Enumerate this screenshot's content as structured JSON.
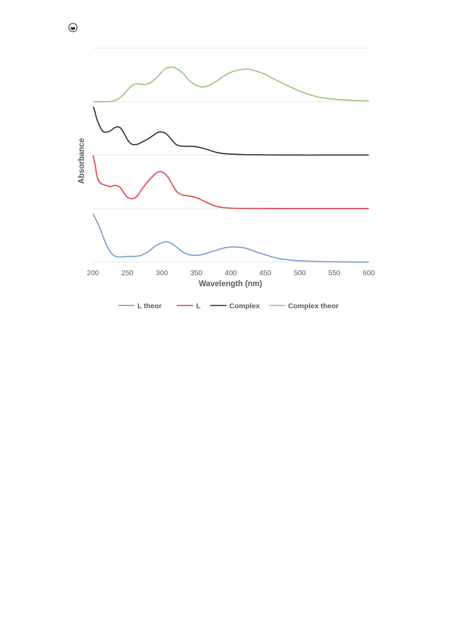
{
  "header": {
    "icon": "circled-half-icon"
  },
  "chart_data": {
    "type": "line",
    "title": "",
    "xlabel": "Wavelength (nm)",
    "ylabel": "Absorbance",
    "xlim": [
      200,
      600
    ],
    "xticks": [
      "200",
      "250",
      "300",
      "350",
      "400",
      "450",
      "500",
      "550",
      "600"
    ],
    "y_tick_labels_shown": false,
    "horizontal_gridlines": true,
    "band_count": 4,
    "legend": {
      "placement": "bottom",
      "entries": [
        "L theor",
        "L",
        "Complex",
        "Complex theor"
      ]
    },
    "series": [
      {
        "name": "L theor",
        "color": "#7395d1",
        "band": 0,
        "x": [
          200,
          205,
          210,
          215,
          220,
          225,
          230,
          235,
          240,
          245,
          250,
          260,
          270,
          280,
          290,
          300,
          305,
          310,
          315,
          320,
          330,
          340,
          350,
          360,
          370,
          380,
          390,
          400,
          405,
          410,
          420,
          430,
          440,
          450,
          460,
          470,
          480,
          490,
          500,
          520,
          540,
          560,
          580,
          600
        ],
        "y": [
          0.92,
          0.8,
          0.65,
          0.48,
          0.32,
          0.2,
          0.13,
          0.1,
          0.1,
          0.1,
          0.11,
          0.11,
          0.13,
          0.2,
          0.3,
          0.37,
          0.39,
          0.38,
          0.35,
          0.3,
          0.2,
          0.14,
          0.13,
          0.15,
          0.19,
          0.23,
          0.27,
          0.29,
          0.29,
          0.285,
          0.27,
          0.23,
          0.18,
          0.14,
          0.1,
          0.07,
          0.05,
          0.035,
          0.025,
          0.015,
          0.008,
          0.005,
          0.003,
          0.002
        ]
      },
      {
        "name": "L",
        "color": "#e0383e",
        "band": 1,
        "x": [
          200,
          203,
          206,
          210,
          215,
          220,
          225,
          230,
          235,
          240,
          245,
          250,
          255,
          260,
          265,
          270,
          280,
          290,
          295,
          300,
          305,
          310,
          315,
          320,
          325,
          330,
          340,
          350,
          360,
          370,
          380,
          390,
          400,
          420,
          450,
          500,
          550,
          600
        ],
        "y": [
          1.02,
          0.85,
          0.62,
          0.5,
          0.46,
          0.44,
          0.42,
          0.44,
          0.44,
          0.4,
          0.3,
          0.22,
          0.19,
          0.2,
          0.25,
          0.35,
          0.52,
          0.66,
          0.7,
          0.7,
          0.66,
          0.58,
          0.46,
          0.35,
          0.29,
          0.26,
          0.24,
          0.21,
          0.15,
          0.09,
          0.04,
          0.02,
          0.01,
          0.005,
          0.002,
          0.001,
          0.001,
          0.001
        ]
      },
      {
        "name": "Complex",
        "color": "#262626",
        "band": 2,
        "x": [
          200,
          202,
          205,
          210,
          215,
          220,
          225,
          230,
          235,
          240,
          245,
          250,
          255,
          260,
          265,
          270,
          280,
          290,
          295,
          300,
          305,
          310,
          315,
          320,
          325,
          330,
          340,
          350,
          360,
          370,
          380,
          390,
          400,
          420,
          450,
          500,
          550,
          600
        ],
        "y": [
          0.92,
          0.88,
          0.72,
          0.55,
          0.45,
          0.44,
          0.46,
          0.51,
          0.54,
          0.52,
          0.42,
          0.3,
          0.22,
          0.2,
          0.21,
          0.24,
          0.31,
          0.4,
          0.44,
          0.44,
          0.42,
          0.36,
          0.28,
          0.21,
          0.18,
          0.17,
          0.17,
          0.16,
          0.13,
          0.09,
          0.05,
          0.03,
          0.02,
          0.01,
          0.005,
          0.002,
          0.002,
          0.002
        ]
      },
      {
        "name": "Complex theor",
        "color": "#93c26e",
        "band": 3,
        "x": [
          200,
          220,
          230,
          240,
          250,
          255,
          260,
          265,
          270,
          280,
          290,
          300,
          305,
          310,
          315,
          320,
          330,
          340,
          350,
          360,
          370,
          380,
          390,
          400,
          410,
          420,
          425,
          430,
          440,
          450,
          460,
          480,
          500,
          520,
          540,
          560,
          580,
          600
        ],
        "y": [
          0,
          0,
          0.015,
          0.08,
          0.22,
          0.29,
          0.33,
          0.34,
          0.33,
          0.34,
          0.43,
          0.57,
          0.63,
          0.65,
          0.66,
          0.64,
          0.55,
          0.4,
          0.31,
          0.28,
          0.32,
          0.4,
          0.49,
          0.56,
          0.6,
          0.62,
          0.62,
          0.61,
          0.57,
          0.52,
          0.45,
          0.32,
          0.2,
          0.11,
          0.06,
          0.035,
          0.022,
          0.015
        ]
      }
    ]
  }
}
